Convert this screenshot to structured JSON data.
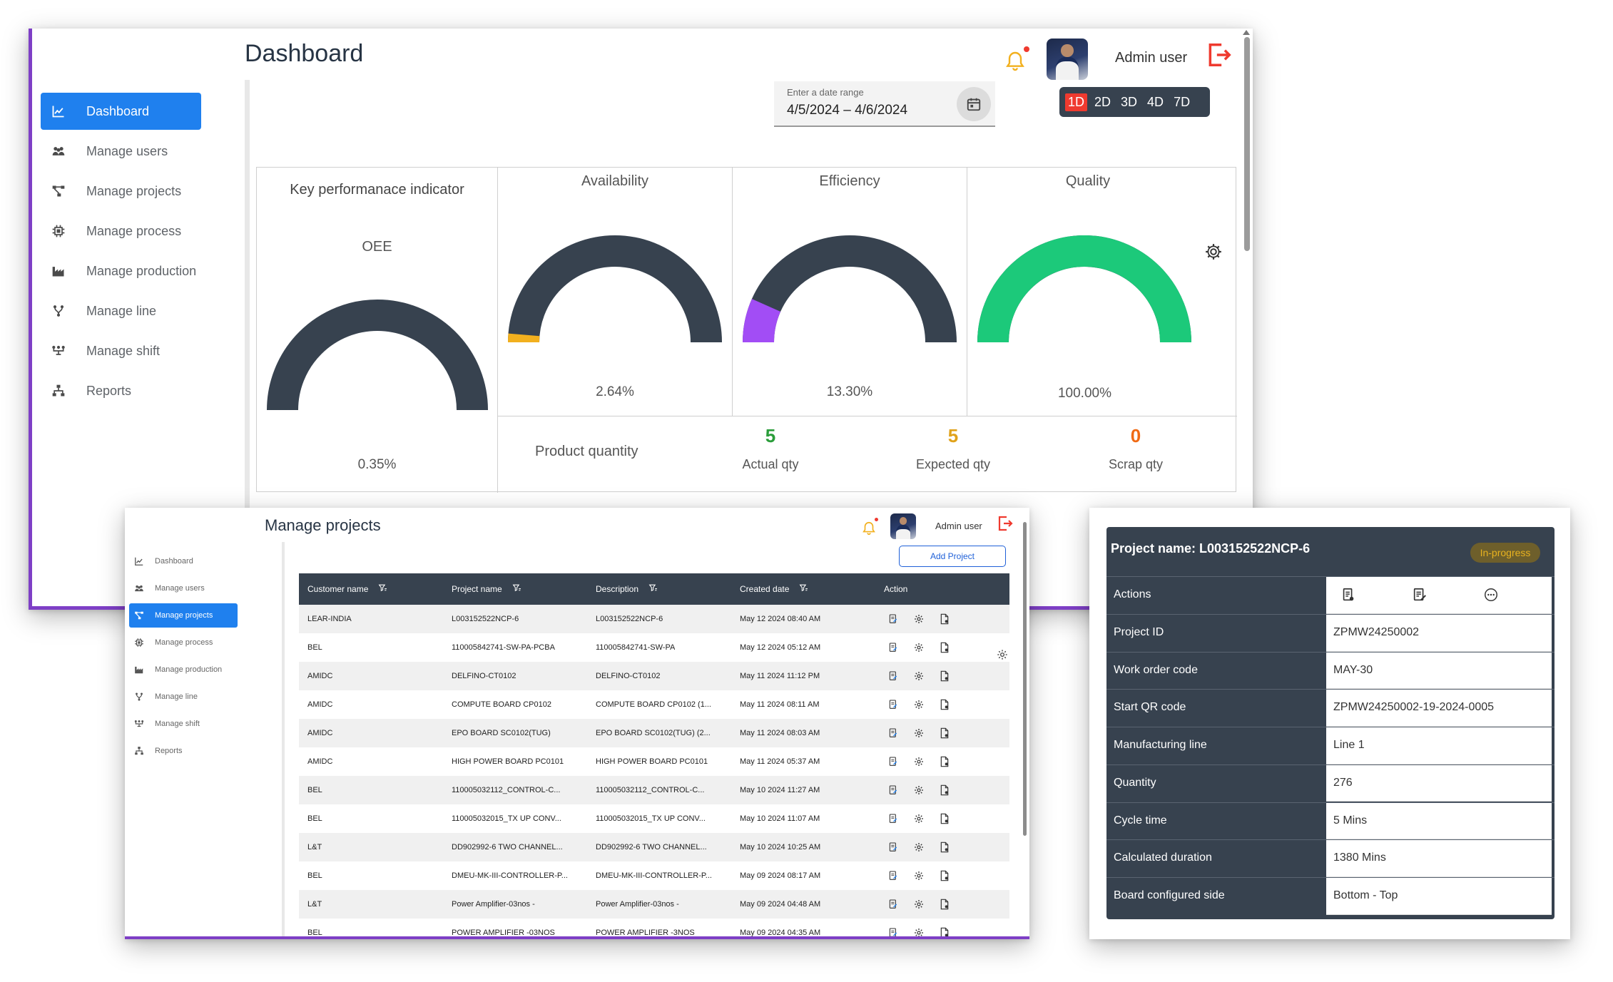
{
  "dashboard": {
    "title": "Dashboard",
    "user": "Admin user",
    "sidebar": [
      {
        "label": "Dashboard",
        "icon": "chart-line-icon",
        "active": true
      },
      {
        "label": "Manage users",
        "icon": "users-icon"
      },
      {
        "label": "Manage projects",
        "icon": "project-tree-icon"
      },
      {
        "label": "Manage process",
        "icon": "chip-icon"
      },
      {
        "label": "Manage production",
        "icon": "factory-icon"
      },
      {
        "label": "Manage line",
        "icon": "fork-icon"
      },
      {
        "label": "Manage shift",
        "icon": "shift-icon"
      },
      {
        "label": "Reports",
        "icon": "sitemap-icon"
      }
    ],
    "date_range": {
      "label": "Enter a date range",
      "value": "4/5/2024 – 4/6/2024"
    },
    "range_buttons": [
      "1D",
      "2D",
      "3D",
      "4D",
      "7D"
    ],
    "range_active": "1D",
    "kpi": {
      "title": "Key performanace indicator",
      "oee_label": "OEE",
      "oee_value": "0.35%",
      "oee_fraction": 0.0035
    },
    "availability": {
      "label": "Availability",
      "value": "2.64%",
      "fraction": 0.0264,
      "color": "#f2b01e"
    },
    "efficiency": {
      "label": "Efficiency",
      "value": "13.30%",
      "fraction": 0.133,
      "color": "#a24df5"
    },
    "quality": {
      "label": "Quality",
      "value": "100.00%",
      "fraction": 1.0,
      "color": "#1cc97a"
    },
    "product_quantity": {
      "label": "Product quantity",
      "actual": {
        "value": "5",
        "label": "Actual qty",
        "color": "#2a9d3a"
      },
      "expected": {
        "value": "5",
        "label": "Expected qty",
        "color": "#e0a21a"
      },
      "scrap": {
        "value": "0",
        "label": "Scrap qty",
        "color": "#f06a14"
      }
    },
    "colors": {
      "accent": "#1f80ee",
      "dark": "#37424f",
      "border": "#7e3fc6",
      "danger": "#ef3a2f"
    }
  },
  "projects": {
    "title": "Manage projects",
    "user": "Admin user",
    "add_button": "Add Project",
    "sidebar": [
      {
        "label": "Dashboard",
        "icon": "chart-line-icon"
      },
      {
        "label": "Manage users",
        "icon": "users-icon"
      },
      {
        "label": "Manage projects",
        "icon": "project-tree-icon",
        "active": true
      },
      {
        "label": "Manage process",
        "icon": "chip-icon"
      },
      {
        "label": "Manage production",
        "icon": "factory-icon"
      },
      {
        "label": "Manage line",
        "icon": "fork-icon"
      },
      {
        "label": "Manage shift",
        "icon": "shift-icon"
      },
      {
        "label": "Reports",
        "icon": "sitemap-icon"
      }
    ],
    "columns": [
      "Customer name",
      "Project name",
      "Description",
      "Created date",
      "Action"
    ],
    "rows": [
      {
        "customer": "LEAR-INDIA",
        "project": "L003152522NCP-6",
        "description": "L003152522NCP-6",
        "created": "May 12 2024 08:40 AM"
      },
      {
        "customer": "BEL",
        "project": "110005842741-SW-PA-PCBA",
        "description": "110005842741-SW-PA",
        "created": "May 12 2024 05:12 AM"
      },
      {
        "customer": "AMIDC",
        "project": "DELFINO-CT0102",
        "description": "DELFINO-CT0102",
        "created": "May 11 2024 11:12 PM"
      },
      {
        "customer": "AMIDC",
        "project": "COMPUTE BOARD CP0102",
        "description": "COMPUTE BOARD CP0102 (1...",
        "created": "May 11 2024 08:11 AM"
      },
      {
        "customer": "AMIDC",
        "project": "EPO BOARD SC0102(TUG)",
        "description": "EPO BOARD SC0102(TUG) (2...",
        "created": "May 11 2024 08:03 AM"
      },
      {
        "customer": "AMIDC",
        "project": "HIGH POWER BOARD PC0101",
        "description": "HIGH POWER BOARD PC0101",
        "created": "May 11 2024 05:37 AM"
      },
      {
        "customer": "BEL",
        "project": "110005032112_CONTROL-C...",
        "description": "110005032112_CONTROL-C...",
        "created": "May 10 2024 11:27 AM"
      },
      {
        "customer": "BEL",
        "project": "110005032015_TX UP CONV...",
        "description": "110005032015_TX UP CONV...",
        "created": "May 10 2024 11:07 AM"
      },
      {
        "customer": "L&T",
        "project": "DD902992-6 TWO CHANNEL...",
        "description": "DD902992-6 TWO CHANNEL...",
        "created": "May 10 2024 10:25 AM"
      },
      {
        "customer": "BEL",
        "project": "DMEU-MK-III-CONTROLLER-P...",
        "description": "DMEU-MK-III-CONTROLLER-P...",
        "created": "May 09 2024 08:17 AM"
      },
      {
        "customer": "L&T",
        "project": "Power Amplifier-03nos -",
        "description": "Power Amplifier-03nos -",
        "created": "May 09 2024 04:48 AM"
      },
      {
        "customer": "BEL",
        "project": "POWER AMPLIFIER -03NOS",
        "description": "POWER AMPLIFIER -3NOS",
        "created": "May 09 2024 04:35 AM"
      }
    ]
  },
  "detail": {
    "title": "Project name: L003152522NCP-6",
    "status": "In-progress",
    "actions_label": "Actions",
    "fields": [
      {
        "key": "Project ID",
        "value": "ZPMW24250002"
      },
      {
        "key": "Work order code",
        "value": "MAY-30"
      },
      {
        "key": "Start QR code",
        "value": "ZPMW24250002-19-2024-0005"
      },
      {
        "key": "Manufacturing line",
        "value": "Line 1"
      },
      {
        "key": "Quantity",
        "value": "276"
      },
      {
        "key": "Cycle time",
        "value": "5 Mins"
      },
      {
        "key": "Calculated duration",
        "value": "1380 Mins"
      },
      {
        "key": "Board configured side",
        "value": "Bottom - Top"
      }
    ]
  }
}
